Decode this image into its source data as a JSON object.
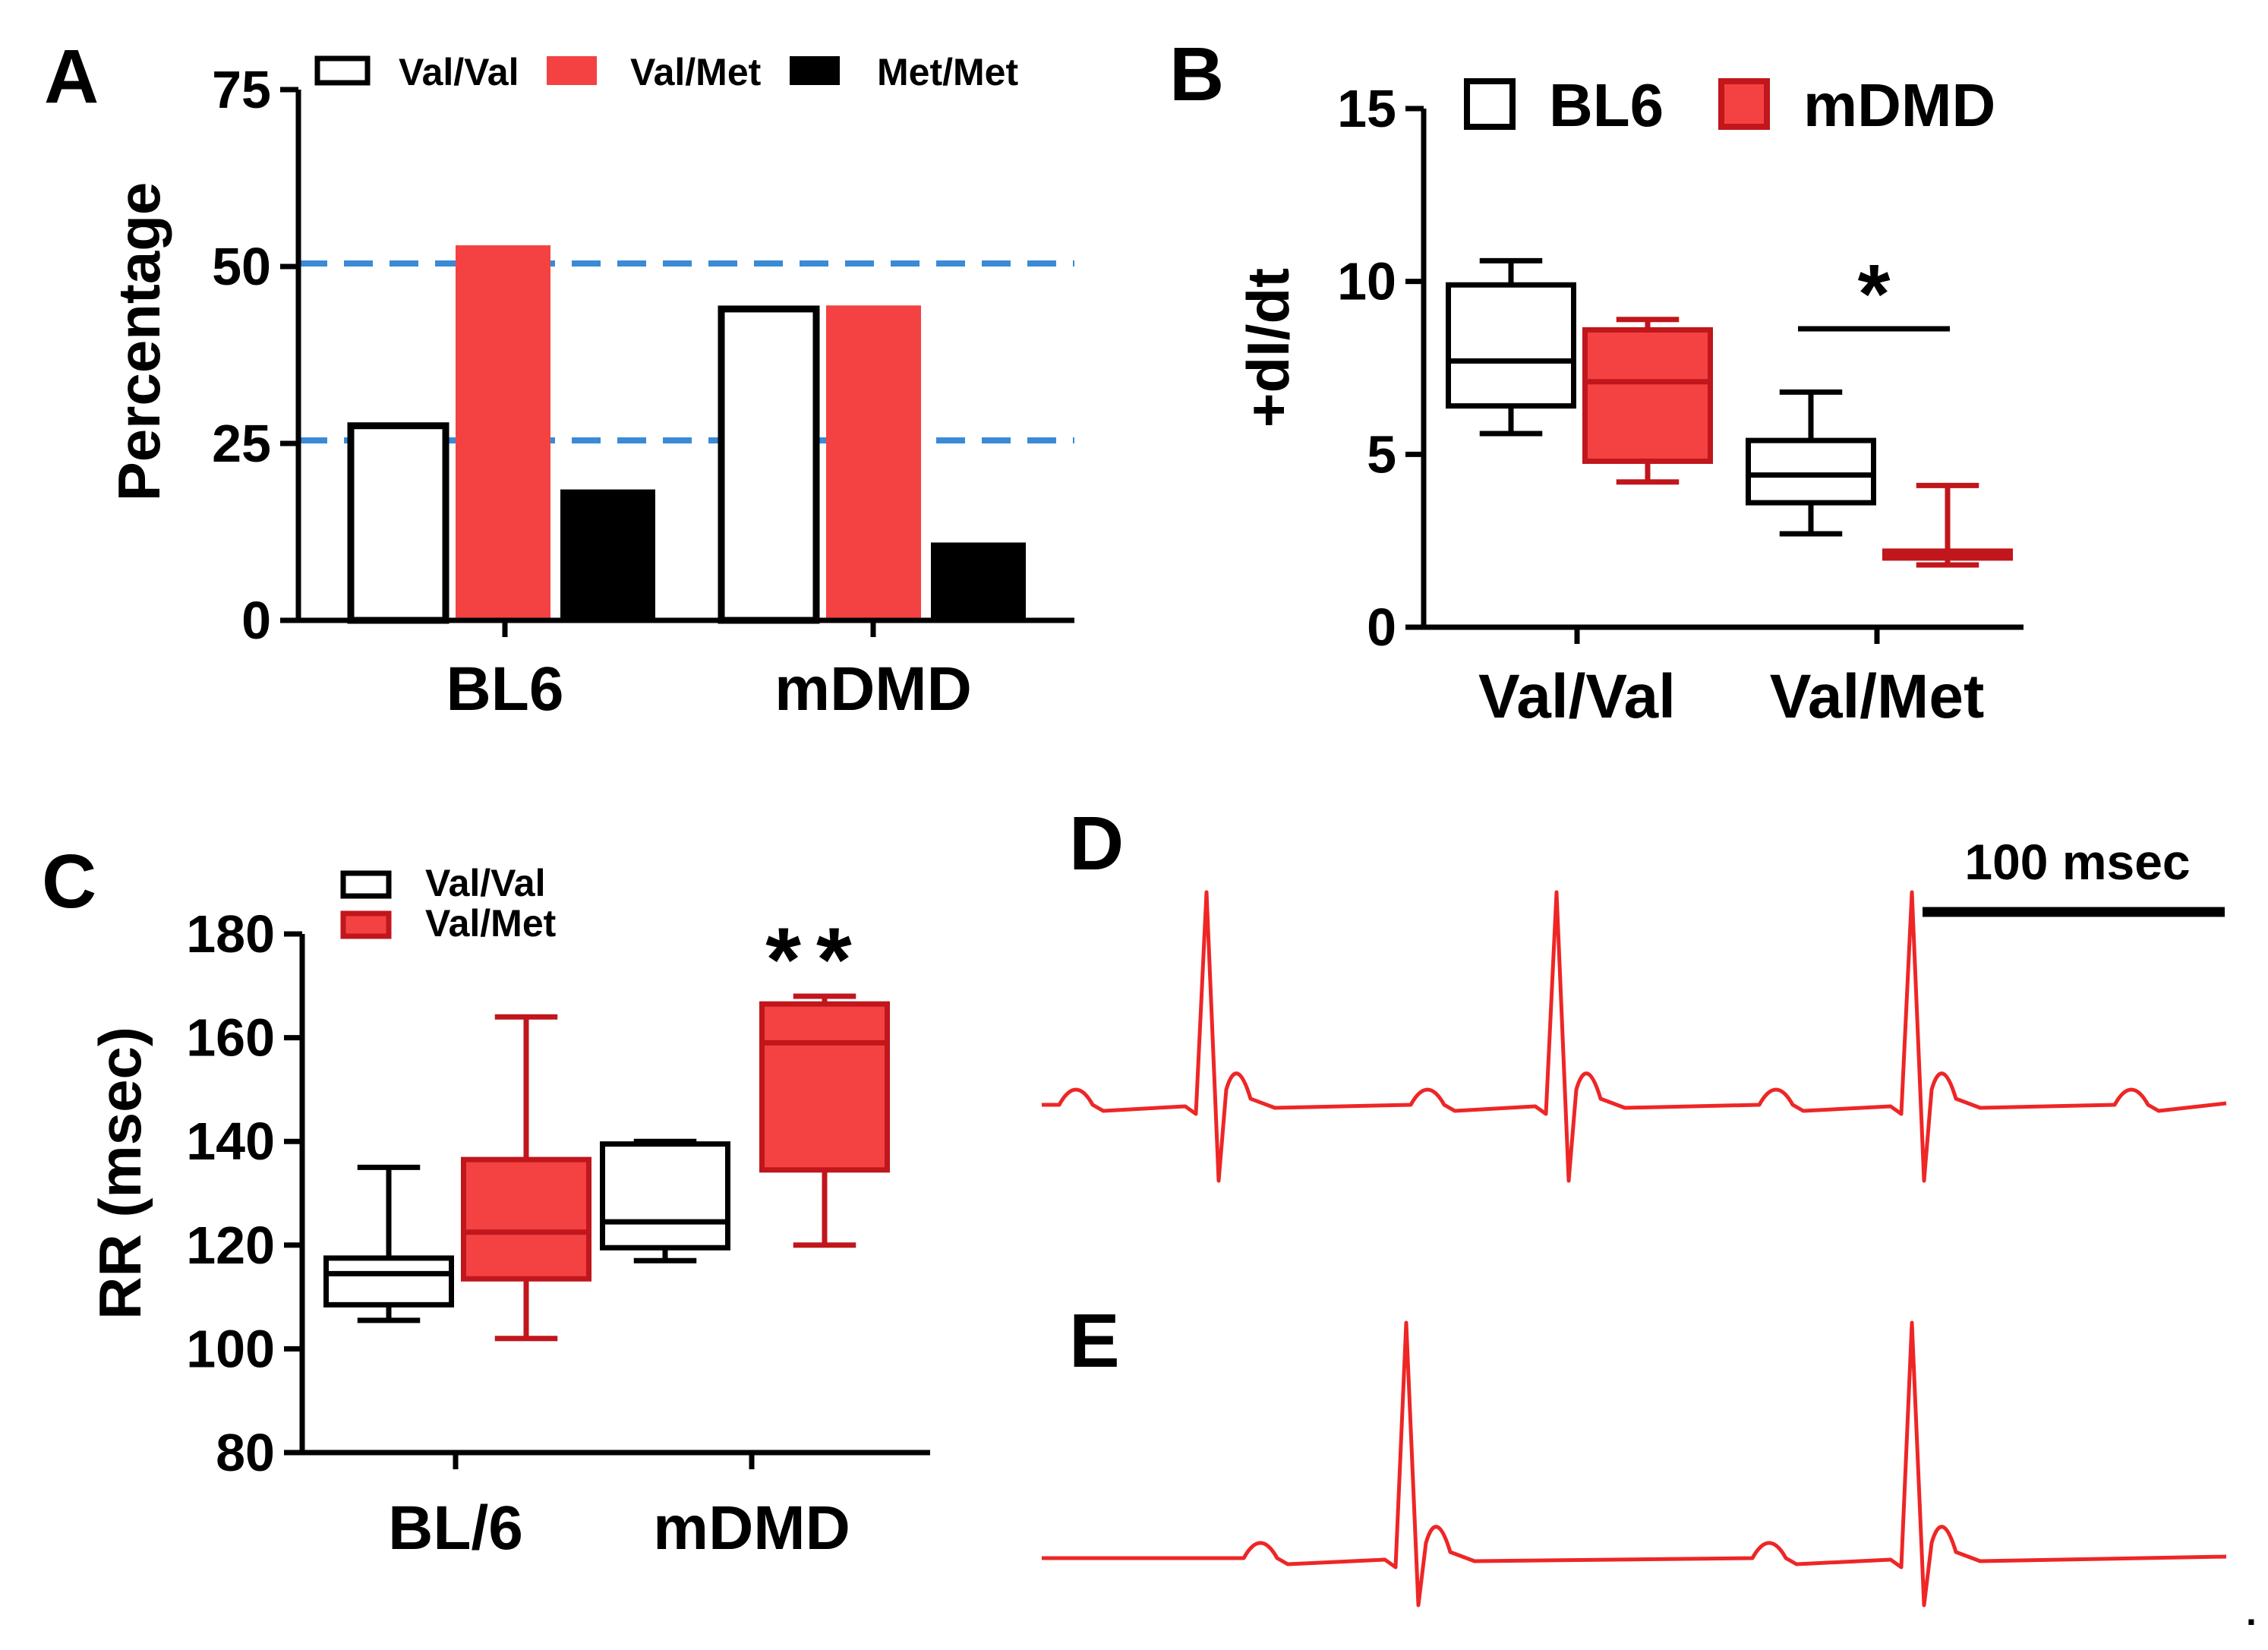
{
  "colors": {
    "red": "#f44242",
    "dark_red": "#c0161c",
    "black": "#000000",
    "white": "#ffffff",
    "blue_dash": "#3a8ad6",
    "ecg_red": "#ee2626"
  },
  "panels": {
    "A": {
      "letter": "A"
    },
    "B": {
      "letter": "B"
    },
    "C": {
      "letter": "C"
    },
    "D": {
      "letter": "D",
      "scale_label": "100 msec"
    },
    "E": {
      "letter": "E"
    }
  },
  "trailing_mark": ".",
  "chart_data": [
    {
      "id": "A",
      "type": "bar",
      "title": "",
      "ylabel": "Percentage",
      "xlabel": "",
      "ylim": [
        0,
        75
      ],
      "yticks": [
        "0",
        "25",
        "50",
        "75"
      ],
      "categories": [
        "BL6",
        "mDMD"
      ],
      "series": [
        {
          "name": "Val/Val",
          "values": [
            27.5,
            44
          ]
        },
        {
          "name": "Val/Met",
          "values": [
            53,
            44.5
          ]
        },
        {
          "name": "Met/Met",
          "values": [
            18.5,
            11
          ]
        }
      ],
      "reference_lines": [
        25,
        50
      ],
      "legend": {
        "position": "top",
        "labels": [
          "Val/Val",
          "Val/Met",
          "Met/Met"
        ]
      }
    },
    {
      "id": "B",
      "type": "box",
      "ylabel": "+dI/dt",
      "ylim": [
        0,
        15
      ],
      "yticks": [
        "0",
        "5",
        "10",
        "15"
      ],
      "categories": [
        "Val/Val",
        "Val/Met"
      ],
      "series": [
        {
          "name": "BL6",
          "boxes": [
            {
              "min": 5.6,
              "q1": 6.4,
              "median": 7.7,
              "q3": 9.9,
              "max": 10.6
            },
            {
              "min": 2.7,
              "q1": 3.6,
              "median": 4.4,
              "q3": 5.4,
              "max": 6.8
            }
          ]
        },
        {
          "name": "mDMD",
          "boxes": [
            {
              "min": 4.2,
              "q1": 4.8,
              "median": 7.1,
              "q3": 8.6,
              "max": 8.9
            },
            {
              "min": 1.8,
              "q1": 2.0,
              "median": 2.1,
              "q3": 2.2,
              "max": 4.1
            }
          ]
        }
      ],
      "annotation": {
        "text": "*",
        "category": "Val/Met"
      },
      "legend": {
        "position": "top",
        "labels": [
          "BL6",
          "mDMD"
        ]
      }
    },
    {
      "id": "C",
      "type": "box",
      "ylabel": "RR (msec)",
      "ylim": [
        80,
        180
      ],
      "yticks": [
        "80",
        "100",
        "120",
        "140",
        "160",
        "180"
      ],
      "categories": [
        "BL/6",
        "mDMD"
      ],
      "series": [
        {
          "name": "Val/Val",
          "boxes": [
            {
              "min": 105.5,
              "q1": 108.5,
              "median": 114.5,
              "q3": 117.5,
              "max": 135
            },
            {
              "min": 117,
              "q1": 119.5,
              "median": 124.5,
              "q3": 139.5,
              "max": 140
            }
          ]
        },
        {
          "name": "Val/Met",
          "boxes": [
            {
              "min": 102,
              "q1": 113.5,
              "median": 122.5,
              "q3": 136.5,
              "max": 164
            },
            {
              "min": 120,
              "q1": 134.5,
              "median": 159,
              "q3": 166.5,
              "max": 168
            }
          ]
        }
      ],
      "annotation": {
        "text": "**",
        "category": "mDMD"
      },
      "legend": {
        "position": "top-left",
        "labels": [
          "Val/Val",
          "Val/Met"
        ]
      }
    }
  ]
}
